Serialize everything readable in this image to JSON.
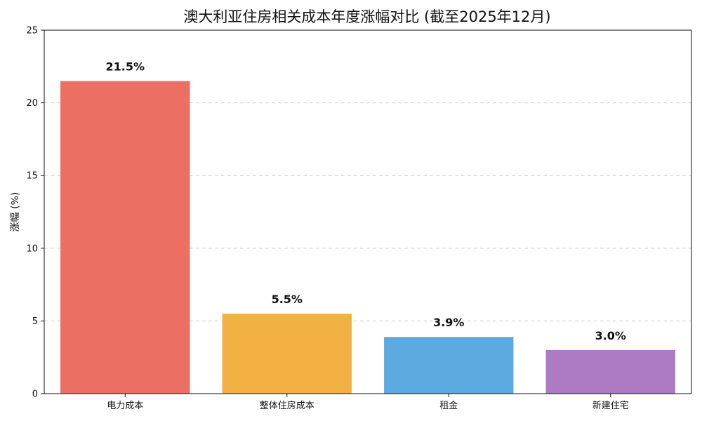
{
  "chart_data": {
    "type": "bar",
    "title": "澳大利亚住房相关成本年度涨幅对比 (截至2025年12月)",
    "xlabel": "",
    "ylabel": "涨幅 (%)",
    "categories": [
      "电力成本",
      "整体住房成本",
      "租金",
      "新建住宅"
    ],
    "values": [
      21.5,
      5.5,
      3.9,
      3.0
    ],
    "value_labels": [
      "21.5%",
      "5.5%",
      "3.9%",
      "3.0%"
    ],
    "colors": [
      "#EB6F63",
      "#F4B143",
      "#5DAAE0",
      "#AD7BC4"
    ],
    "ylim": [
      0,
      25
    ],
    "yticks": [
      0,
      5,
      10,
      15,
      20,
      25
    ],
    "grid": "y-dashed",
    "legend": "none"
  }
}
